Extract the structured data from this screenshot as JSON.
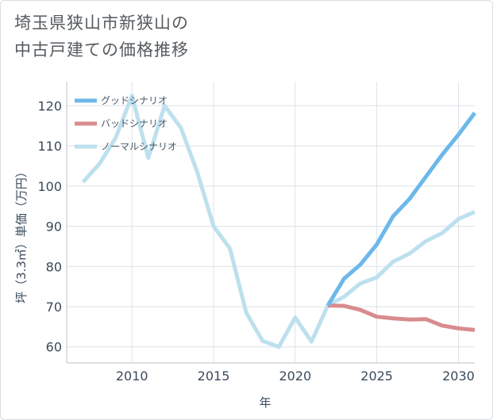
{
  "chart_data": {
    "type": "line",
    "title_lines": [
      "埼玉県狭山市新狭山の",
      "中古戸建ての価格推移"
    ],
    "xlabel": "年",
    "ylabel": "坪（3.3㎡）単価（万円）",
    "xlim": [
      2006,
      2031
    ],
    "ylim": [
      56,
      126
    ],
    "x_ticks": [
      2010,
      2015,
      2020,
      2025,
      2030
    ],
    "y_ticks": [
      60,
      70,
      80,
      90,
      100,
      110,
      120
    ],
    "legend_position": "top-left",
    "grid": true,
    "series": [
      {
        "name": "グッドシナリオ",
        "color": "#6cb8ea",
        "points": [
          [
            2022,
            70.3
          ],
          [
            2023,
            77
          ],
          [
            2024,
            80.5
          ],
          [
            2025,
            85.5
          ],
          [
            2026,
            92.5
          ],
          [
            2027,
            96.8
          ],
          [
            2028,
            102.3
          ],
          [
            2029,
            107.8
          ],
          [
            2030,
            112.8
          ],
          [
            2031,
            118.2
          ]
        ]
      },
      {
        "name": "バッドシナリオ",
        "color": "#d98b8e",
        "points": [
          [
            2022,
            70.3
          ],
          [
            2023,
            70.2
          ],
          [
            2024,
            69.2
          ],
          [
            2025,
            67.5
          ],
          [
            2026,
            67.1
          ],
          [
            2027,
            66.8
          ],
          [
            2028,
            66.9
          ],
          [
            2029,
            65.3
          ],
          [
            2030,
            64.6
          ],
          [
            2031,
            64.2
          ]
        ]
      },
      {
        "name": "ノーマルシナリオ",
        "color": "#bde0ee",
        "points": [
          [
            2007,
            101
          ],
          [
            2008,
            105.5
          ],
          [
            2009,
            112
          ],
          [
            2010,
            122.5
          ],
          [
            2011,
            107
          ],
          [
            2012,
            120
          ],
          [
            2013,
            114.5
          ],
          [
            2014,
            103.5
          ],
          [
            2015,
            90
          ],
          [
            2016,
            84.5
          ],
          [
            2017,
            68.5
          ],
          [
            2018,
            61.5
          ],
          [
            2019,
            60
          ],
          [
            2020,
            67.3
          ],
          [
            2021,
            61.3
          ],
          [
            2022,
            70.3
          ],
          [
            2023,
            72.5
          ],
          [
            2024,
            75.8
          ],
          [
            2025,
            77.3
          ],
          [
            2026,
            81.2
          ],
          [
            2027,
            83.2
          ],
          [
            2028,
            86.3
          ],
          [
            2029,
            88.3
          ],
          [
            2030,
            91.8
          ],
          [
            2031,
            93.6
          ]
        ]
      }
    ]
  }
}
